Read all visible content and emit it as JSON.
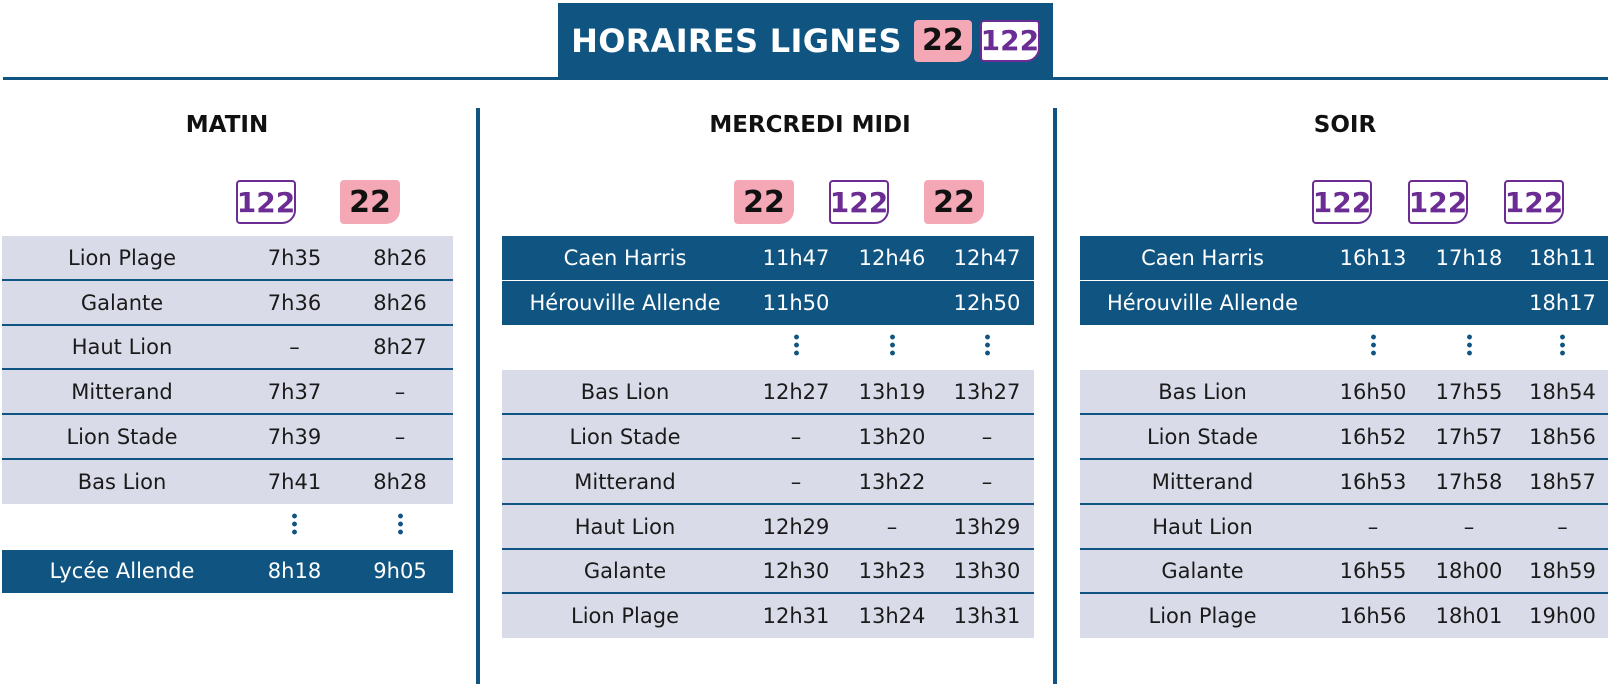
{
  "header": {
    "title": "HORAIRES LIGNES",
    "badges": [
      "22",
      "122"
    ]
  },
  "colors": {
    "dark_blue": "#105582",
    "light_row": "#d9dce8",
    "pink": "#f4a7b5",
    "purple": "#6b2c93"
  },
  "sections": [
    {
      "title": "MATIN",
      "lines": [
        "122",
        "22"
      ],
      "rows": [
        {
          "stop": "Lion Plage",
          "times": [
            "7h35",
            "8h26"
          ],
          "style": "light"
        },
        {
          "stop": "Galante",
          "times": [
            "7h36",
            "8h26"
          ],
          "style": "light"
        },
        {
          "stop": "Haut Lion",
          "times": [
            "–",
            "8h27"
          ],
          "style": "light"
        },
        {
          "stop": "Mitterand",
          "times": [
            "7h37",
            "–"
          ],
          "style": "light"
        },
        {
          "stop": "Lion Stade",
          "times": [
            "7h39",
            "–"
          ],
          "style": "light"
        },
        {
          "stop": "Bas Lion",
          "times": [
            "7h41",
            "8h28"
          ],
          "style": "light"
        },
        {
          "stop": "",
          "times": [
            "⋮",
            "⋮"
          ],
          "style": "blank"
        },
        {
          "stop": "Lycée Allende",
          "times": [
            "8h18",
            "9h05"
          ],
          "style": "dark"
        }
      ]
    },
    {
      "title": "MERCREDI MIDI",
      "lines": [
        "22",
        "122",
        "22"
      ],
      "rows": [
        {
          "stop": "Caen Harris",
          "times": [
            "11h47",
            "12h46",
            "12h47"
          ],
          "style": "dark"
        },
        {
          "stop": "Hérouville Allende",
          "times": [
            "11h50",
            "",
            "12h50"
          ],
          "style": "dark"
        },
        {
          "stop": "",
          "times": [
            "⋮",
            "⋮",
            "⋮"
          ],
          "style": "blank"
        },
        {
          "stop": "Bas Lion",
          "times": [
            "12h27",
            "13h19",
            "13h27"
          ],
          "style": "light"
        },
        {
          "stop": "Lion Stade",
          "times": [
            "–",
            "13h20",
            "–"
          ],
          "style": "light"
        },
        {
          "stop": "Mitterand",
          "times": [
            "–",
            "13h22",
            "–"
          ],
          "style": "light"
        },
        {
          "stop": "Haut Lion",
          "times": [
            "12h29",
            "–",
            "13h29"
          ],
          "style": "light"
        },
        {
          "stop": "Galante",
          "times": [
            "12h30",
            "13h23",
            "13h30"
          ],
          "style": "light"
        },
        {
          "stop": "Lion Plage",
          "times": [
            "12h31",
            "13h24",
            "13h31"
          ],
          "style": "light"
        }
      ]
    },
    {
      "title": "SOIR",
      "lines": [
        "122",
        "122",
        "122"
      ],
      "rows": [
        {
          "stop": "Caen Harris",
          "times": [
            "16h13",
            "17h18",
            "18h11"
          ],
          "style": "dark"
        },
        {
          "stop": "Hérouville Allende",
          "times": [
            "",
            "",
            "18h17"
          ],
          "style": "dark"
        },
        {
          "stop": "",
          "times": [
            "⋮",
            "⋮",
            "⋮"
          ],
          "style": "blank"
        },
        {
          "stop": "Bas Lion",
          "times": [
            "16h50",
            "17h55",
            "18h54"
          ],
          "style": "light"
        },
        {
          "stop": "Lion Stade",
          "times": [
            "16h52",
            "17h57",
            "18h56"
          ],
          "style": "light"
        },
        {
          "stop": "Mitterand",
          "times": [
            "16h53",
            "17h58",
            "18h57"
          ],
          "style": "light"
        },
        {
          "stop": "Haut Lion",
          "times": [
            "–",
            "–",
            "–"
          ],
          "style": "light"
        },
        {
          "stop": "Galante",
          "times": [
            "16h55",
            "18h00",
            "18h59"
          ],
          "style": "light"
        },
        {
          "stop": "Lion Plage",
          "times": [
            "16h56",
            "18h01",
            "19h00"
          ],
          "style": "light"
        }
      ]
    }
  ]
}
